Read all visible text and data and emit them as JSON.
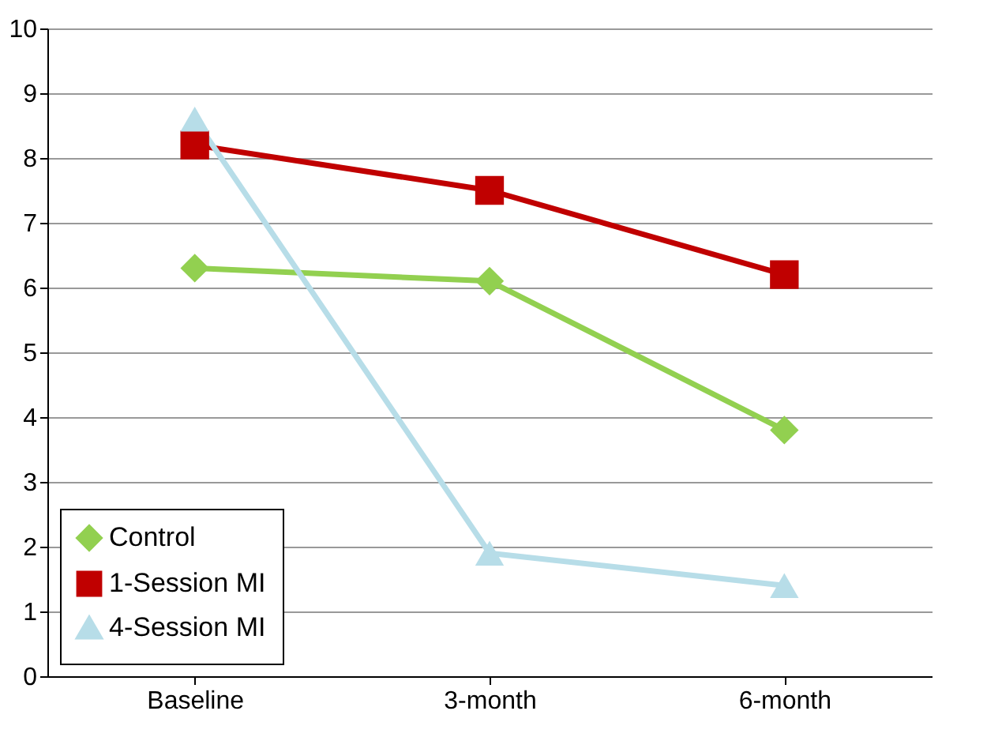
{
  "chart_data": {
    "type": "line",
    "categories": [
      "Baseline",
      "3-month",
      "6-month"
    ],
    "series": [
      {
        "name": "Control",
        "color": "#92d050",
        "marker": "diamond",
        "values": [
          6.3,
          6.1,
          3.8
        ]
      },
      {
        "name": "1-Session MI",
        "color": "#c00000",
        "marker": "square",
        "values": [
          8.2,
          7.5,
          6.2
        ]
      },
      {
        "name": "4-Session MI",
        "color": "#b7dde8",
        "marker": "triangle",
        "values": [
          8.6,
          1.9,
          1.4
        ]
      }
    ],
    "ylim": [
      0,
      10
    ],
    "yticks": [
      0,
      1,
      2,
      3,
      4,
      5,
      6,
      7,
      8,
      9,
      10
    ],
    "grid": "y",
    "legend": "bottom left",
    "line_style": "solid"
  }
}
